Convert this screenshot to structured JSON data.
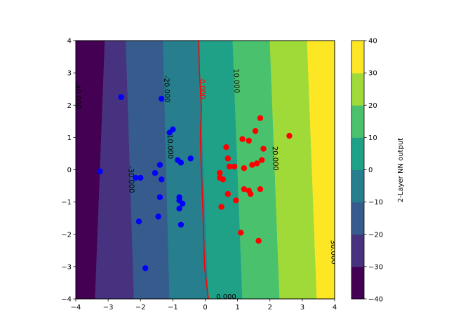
{
  "chart_data": {
    "type": "scatter",
    "title": "",
    "xlabel": "",
    "ylabel": "",
    "xlim": [
      -4,
      4
    ],
    "ylim": [
      -4,
      4
    ],
    "xticks": [
      "−4",
      "−3",
      "−2",
      "−1",
      "0",
      "1",
      "2",
      "3",
      "4"
    ],
    "yticks": [
      "−4",
      "−3",
      "−2",
      "−1",
      "0",
      "1",
      "2",
      "3",
      "4"
    ],
    "grid": false,
    "background_contour": {
      "levels": [
        -40,
        -30,
        -20,
        -10,
        0,
        10,
        20,
        30,
        40
      ],
      "colors": [
        "#440154",
        "#46327e",
        "#365c8d",
        "#277f8e",
        "#1fa187",
        "#4ac16d",
        "#a0da39",
        "#fde725"
      ],
      "boundaries": [
        {
          "value": -30,
          "x_at_ymin": -3.4,
          "x_at_ymax": -3.1
        },
        {
          "value": -20,
          "x_at_ymin": -2.2,
          "x_at_ymax": -2.45
        },
        {
          "value": -10,
          "x_at_ymin": -1.1,
          "x_at_ymax": -1.3
        },
        {
          "value": 0,
          "x_at_ymin": 0.1,
          "x_at_ymax": -0.2
        },
        {
          "value": 10,
          "x_at_ymin": 1.15,
          "x_at_ymax": 0.85
        },
        {
          "value": 20,
          "x_at_ymin": 2.3,
          "x_at_ymax": 2.0
        },
        {
          "value": 30,
          "x_at_ymin": 3.45,
          "x_at_ymax": 3.15
        }
      ]
    },
    "decision_boundary": {
      "color": "#ff0000",
      "points": [
        [
          -0.2,
          4
        ],
        [
          -0.18,
          3
        ],
        [
          -0.12,
          2
        ],
        [
          -0.13,
          1.5
        ],
        [
          -0.15,
          1
        ],
        [
          -0.12,
          0
        ],
        [
          -0.08,
          -1
        ],
        [
          -0.05,
          -2
        ],
        [
          -0.02,
          -3
        ],
        [
          0.05,
          -3.6
        ],
        [
          0.1,
          -4
        ]
      ]
    },
    "contour_labels": [
      {
        "text": "-40.000",
        "x": -3.95,
        "y": 2.3,
        "rotation": 88,
        "color": "#000000"
      },
      {
        "text": "-20.000",
        "x": -1.2,
        "y": 2.5,
        "rotation": 88,
        "color": "#000000"
      },
      {
        "text": "0.000",
        "x": -0.1,
        "y": 2.5,
        "rotation": 88,
        "color": "#ff0000"
      },
      {
        "text": "10.000",
        "x": 0.95,
        "y": 2.75,
        "rotation": 88,
        "color": "#000000"
      },
      {
        "text": "-10.000",
        "x": -1.1,
        "y": 0.75,
        "rotation": 88,
        "color": "#000000"
      },
      {
        "text": "20.000",
        "x": 2.15,
        "y": 0.35,
        "rotation": 88,
        "color": "#000000"
      },
      {
        "text": "-30.000",
        "x": -2.3,
        "y": -0.3,
        "rotation": 88,
        "color": "#000000"
      },
      {
        "text": "30.000",
        "x": 3.95,
        "y": -2.55,
        "rotation": 88,
        "color": "#000000"
      },
      {
        "text": "0.000",
        "x": 0.65,
        "y": -3.95,
        "rotation": 0,
        "color": "#000000"
      }
    ],
    "series": [
      {
        "color": "#0000ff",
        "points": [
          [
            -2.6,
            2.25
          ],
          [
            -1.35,
            2.2
          ],
          [
            -3.25,
            -0.05
          ],
          [
            -1.0,
            1.25
          ],
          [
            -1.1,
            1.15
          ],
          [
            -0.85,
            0.3
          ],
          [
            -0.75,
            0.22
          ],
          [
            -0.45,
            0.35
          ],
          [
            -1.4,
            0.15
          ],
          [
            -1.55,
            -0.1
          ],
          [
            -1.35,
            -0.3
          ],
          [
            -2.0,
            -0.25
          ],
          [
            -2.15,
            -0.25
          ],
          [
            -1.4,
            -0.85
          ],
          [
            -0.8,
            -0.85
          ],
          [
            -0.8,
            -0.95
          ],
          [
            -0.8,
            -1.2
          ],
          [
            -0.7,
            -1.05
          ],
          [
            -1.45,
            -1.45
          ],
          [
            -2.05,
            -1.6
          ],
          [
            -0.75,
            -1.7
          ],
          [
            -1.85,
            -3.05
          ]
        ]
      },
      {
        "color": "#ff0000",
        "points": [
          [
            1.7,
            1.6
          ],
          [
            2.6,
            1.05
          ],
          [
            1.55,
            1.2
          ],
          [
            1.15,
            0.95
          ],
          [
            1.35,
            0.9
          ],
          [
            0.65,
            0.7
          ],
          [
            1.8,
            0.65
          ],
          [
            0.7,
            0.35
          ],
          [
            1.75,
            0.3
          ],
          [
            1.6,
            0.2
          ],
          [
            1.45,
            0.15
          ],
          [
            0.75,
            0.1
          ],
          [
            0.9,
            0.1
          ],
          [
            1.2,
            0.05
          ],
          [
            0.45,
            -0.1
          ],
          [
            0.45,
            -0.25
          ],
          [
            0.55,
            -0.3
          ],
          [
            1.2,
            -0.6
          ],
          [
            1.35,
            -0.65
          ],
          [
            1.7,
            -0.6
          ],
          [
            1.4,
            -0.75
          ],
          [
            0.7,
            -0.75
          ],
          [
            0.95,
            -0.95
          ],
          [
            0.5,
            -1.15
          ],
          [
            1.1,
            -1.95
          ],
          [
            1.65,
            -2.2
          ]
        ]
      }
    ],
    "colorbar": {
      "label": "2-Layer NN output",
      "ticks": [
        "−40",
        "−30",
        "−20",
        "−10",
        "0",
        "10",
        "20",
        "30",
        "40"
      ],
      "levels": [
        -40,
        -30,
        -20,
        -10,
        0,
        10,
        20,
        30,
        40
      ],
      "range": [
        -40,
        40
      ]
    }
  }
}
